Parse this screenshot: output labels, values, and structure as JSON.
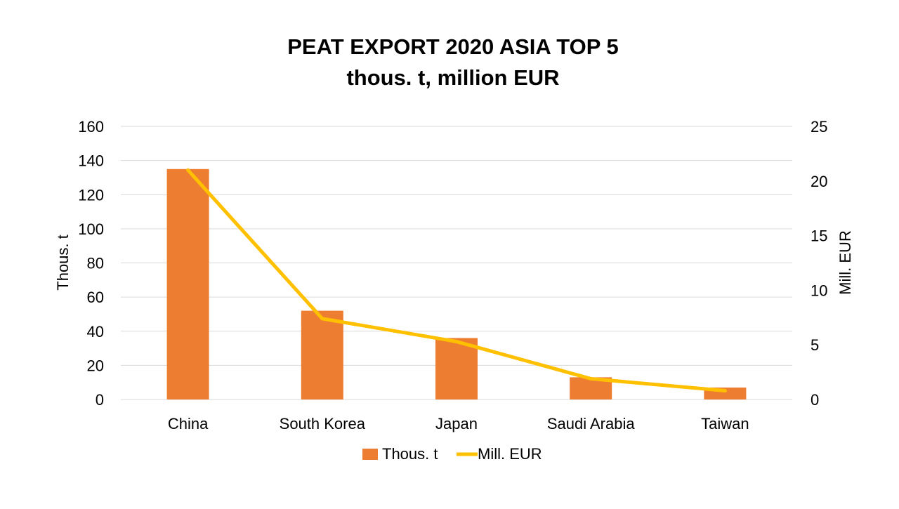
{
  "chart_data": {
    "type": "bar",
    "title": "PEAT EXPORT 2020 ASIA TOP 5",
    "subtitle": "thous. t, million EUR",
    "categories": [
      "China",
      "South Korea",
      "Japan",
      "Saudi Arabia",
      "Taiwan"
    ],
    "series": [
      {
        "name": "Thous. t",
        "type": "bar",
        "axis": "left",
        "color": "#ED7D31",
        "values": [
          135,
          52,
          36,
          13,
          7
        ]
      },
      {
        "name": "Mill. EUR",
        "type": "line",
        "axis": "right",
        "color": "#FFC000",
        "values": [
          21,
          7.4,
          5.3,
          1.9,
          0.8
        ]
      }
    ],
    "ylabel": "Thous. t",
    "y2label": "Mill. EUR",
    "ylim": [
      0,
      160
    ],
    "y2lim": [
      0,
      25
    ],
    "yticks": [
      "0",
      "20",
      "40",
      "60",
      "80",
      "100",
      "120",
      "140",
      "160"
    ],
    "y2ticks": [
      "0",
      "5",
      "10",
      "15",
      "20",
      "25"
    ],
    "grid": true,
    "legend": "bottom"
  }
}
